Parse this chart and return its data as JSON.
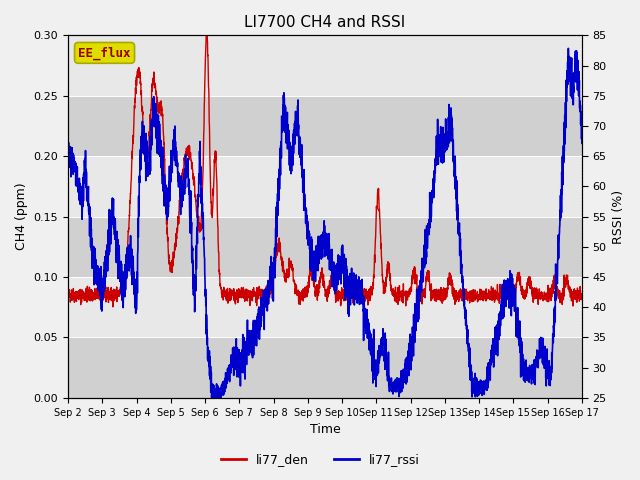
{
  "title": "LI7700 CH4 and RSSI",
  "xlabel": "Time",
  "ylabel_left": "CH4 (ppm)",
  "ylabel_right": "RSSI (%)",
  "annotation": "EE_flux",
  "x_tick_labels": [
    "Sep 2",
    "Sep 3",
    "Sep 4",
    "Sep 5",
    "Sep 6",
    "Sep 7",
    "Sep 8",
    "Sep 9",
    "Sep 10",
    "Sep 11",
    "Sep 12",
    "Sep 13",
    "Sep 14",
    "Sep 15",
    "Sep 16",
    "Sep 17"
  ],
  "ylim_left": [
    0.0,
    0.3
  ],
  "ylim_right": [
    25,
    85
  ],
  "yticks_left": [
    0.0,
    0.05,
    0.1,
    0.15,
    0.2,
    0.25,
    0.3
  ],
  "yticks_right": [
    25,
    30,
    35,
    40,
    45,
    50,
    55,
    60,
    65,
    70,
    75,
    80,
    85
  ],
  "color_red": "#cc0000",
  "color_blue": "#0000cc",
  "legend_labels": [
    "li77_den",
    "li77_rssi"
  ],
  "plot_bg_color": "#e8e8e8",
  "fig_bg_color": "#f0f0f0",
  "band_color_dark": "#d0d0d0",
  "band_color_light": "#e8e8e8",
  "annotation_bg": "#dddd00",
  "annotation_fg": "#990000",
  "title_fontsize": 11,
  "label_fontsize": 9,
  "tick_fontsize": 8,
  "legend_fontsize": 9,
  "linewidth_red": 1.0,
  "linewidth_blue": 1.2
}
